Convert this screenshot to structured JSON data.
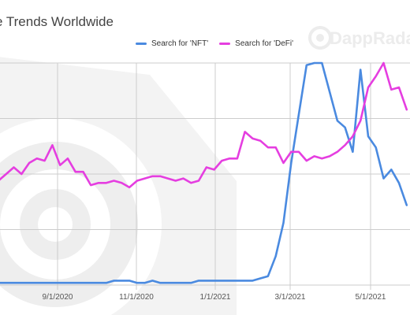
{
  "chart_data": {
    "type": "line",
    "title": "e Trends Worldwide",
    "xlabel": "",
    "ylabel": "",
    "ylim": [
      0,
      100
    ],
    "grid": true,
    "legend": "top-center",
    "x_ticks": [
      "9/1/2020",
      "11/1/2020",
      "1/1/2021",
      "3/1/2021",
      "5/1/2021"
    ],
    "series": [
      {
        "name": "Search for 'NFT'",
        "color": "#4a8ae0",
        "values": [
          1,
          1,
          1,
          1,
          1,
          1,
          1,
          1,
          1,
          1,
          1,
          1,
          1,
          1,
          1,
          2,
          2,
          2,
          1,
          1,
          2,
          1,
          1,
          1,
          1,
          1,
          2,
          2,
          2,
          2,
          2,
          2,
          2,
          2,
          3,
          4,
          13,
          28,
          55,
          77,
          99,
          100,
          100,
          87,
          74,
          71,
          60,
          97,
          67,
          62,
          48,
          52,
          46,
          36
        ]
      },
      {
        "name": "Search for 'DeFi'",
        "color": "#e53ee0",
        "values": [
          47,
          50,
          53,
          50,
          55,
          57,
          56,
          63,
          54,
          57,
          51,
          51,
          45,
          46,
          46,
          47,
          46,
          44,
          47,
          48,
          49,
          49,
          48,
          47,
          48,
          46,
          47,
          53,
          52,
          56,
          57,
          57,
          69,
          66,
          65,
          62,
          62,
          55,
          60,
          60,
          56,
          58,
          57,
          58,
          60,
          63,
          67,
          74,
          89,
          94,
          100,
          88,
          89,
          79
        ]
      }
    ]
  },
  "legend": {
    "nft_label": "Search for 'NFT'",
    "defi_label": "Search for 'DeFi'"
  },
  "watermark": "DappRadar",
  "colors": {
    "nft": "#4a8ae0",
    "defi": "#e53ee0",
    "grid": "#cccccc"
  }
}
